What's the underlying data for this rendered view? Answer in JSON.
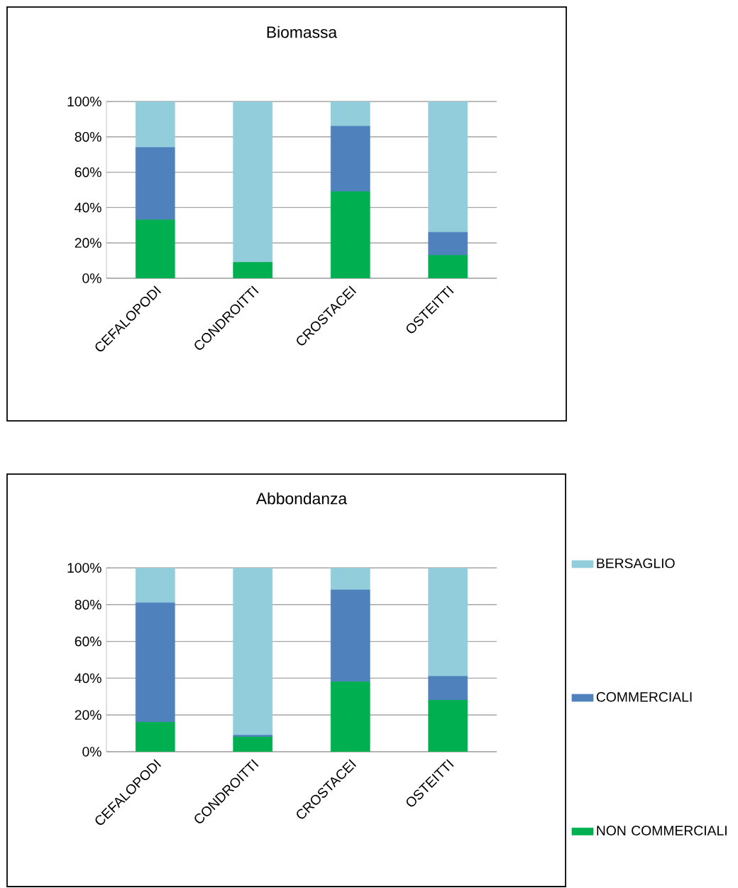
{
  "chart_data": [
    {
      "type": "bar",
      "title": "Biomassa",
      "stacked": true,
      "grid": "y",
      "categories": [
        "CEFALOPODI",
        "CONDROITTI",
        "CROSTACEI",
        "OSTEITTI"
      ],
      "ylim": [
        0,
        100
      ],
      "yticks": [
        {
          "value": 0,
          "label": "0%"
        },
        {
          "value": 20,
          "label": "20%"
        },
        {
          "value": 40,
          "label": "40%"
        },
        {
          "value": 60,
          "label": "60%"
        },
        {
          "value": 80,
          "label": "80%"
        },
        {
          "value": 100,
          "label": "100%"
        }
      ],
      "series": [
        {
          "color": "#00b050",
          "values": [
            33,
            9,
            49,
            13
          ]
        },
        {
          "color": "#4f81bd",
          "values": [
            41,
            0,
            37,
            13
          ]
        },
        {
          "color": "#92cddc",
          "values": [
            26,
            91,
            14,
            74
          ]
        }
      ]
    },
    {
      "type": "bar",
      "title": "Abbondanza",
      "stacked": true,
      "grid": "y",
      "legend": "right",
      "categories": [
        "CEFALOPODI",
        "CONDROITTI",
        "CROSTACEI",
        "OSTEITTI"
      ],
      "ylim": [
        0,
        100
      ],
      "yticks": [
        {
          "value": 0,
          "label": "0%"
        },
        {
          "value": 20,
          "label": "20%"
        },
        {
          "value": 40,
          "label": "40%"
        },
        {
          "value": 60,
          "label": "60%"
        },
        {
          "value": 80,
          "label": "80%"
        },
        {
          "value": 100,
          "label": "100%"
        }
      ],
      "series": [
        {
          "name": "NON COMMERCIALI",
          "color": "#00b050",
          "values": [
            16,
            8,
            38,
            28
          ]
        },
        {
          "name": "COMMERCIALI",
          "color": "#4f81bd",
          "values": [
            65,
            1,
            50,
            13
          ]
        },
        {
          "name": "BERSAGLIO",
          "color": "#92cddc",
          "values": [
            19,
            91,
            12,
            59
          ]
        }
      ]
    }
  ]
}
